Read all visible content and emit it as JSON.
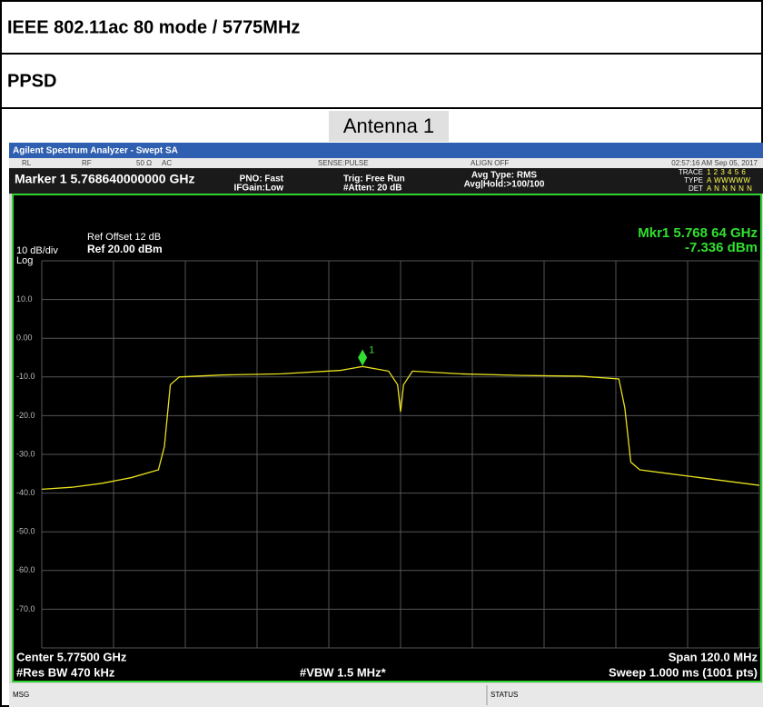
{
  "header": {
    "title": "IEEE 802.11ac 80 mode / 5775MHz",
    "subtitle": "PPSD",
    "caption": "Antenna 1"
  },
  "analyzer": {
    "window_title": "Agilent Spectrum Analyzer - Swept SA",
    "status_items": [
      "RL",
      "RF",
      "50 Ω",
      "AC",
      "SENSE:PULSE",
      "ALIGN OFF",
      "02:57:16 AM Sep 05, 2017"
    ],
    "marker_readout": "Marker 1 5.768640000000 GHz",
    "settings": [
      "PNO: Fast",
      "IFGain:Low",
      "Trig: Free Run",
      "#Atten: 20 dB",
      "Avg Type: RMS",
      "Avg|Hold:>100/100"
    ],
    "trace_label": "TRACE",
    "trace_numbers": "1 2 3 4 5 6",
    "type_label": "TYPE",
    "type_value": "A WWWWW",
    "det_label": "DET",
    "det_value": "A N N N N N",
    "ref_offset": "Ref Offset 12 dB",
    "ref_level": "Ref 20.00 dBm",
    "scale": "10 dB/div",
    "scale_type": "Log",
    "mkr_freq": "Mkr1 5.768 64 GHz",
    "mkr_value": "-7.336 dBm",
    "center": "Center 5.77500 GHz",
    "rbw": "#Res BW 470 kHz",
    "vbw": "#VBW 1.5 MHz*",
    "span": "Span 120.0 MHz",
    "sweep": "Sweep  1.000 ms (1001 pts)",
    "msg": "MSG",
    "status": "STATUS"
  },
  "trace": {
    "color": "#e8e020",
    "xlim": [
      5715,
      5835
    ],
    "ylim": [
      -80,
      20
    ],
    "yticks": [
      {
        "value": 10,
        "label": "10.0"
      },
      {
        "value": 0,
        "label": "0.00"
      },
      {
        "value": -10,
        "label": "-10.0"
      },
      {
        "value": -20,
        "label": "-20.0"
      },
      {
        "value": -30,
        "label": "-30.0"
      },
      {
        "value": -40,
        "label": "-40.0"
      },
      {
        "value": -50,
        "label": "-50.0"
      },
      {
        "value": -60,
        "label": "-60.0"
      },
      {
        "value": -70,
        "label": "-70.0"
      }
    ],
    "x": [
      5715,
      5720,
      5725,
      5730,
      5734.5,
      5735.5,
      5736.5,
      5738,
      5745,
      5755,
      5765,
      5768.64,
      5773,
      5774.5,
      5775,
      5775.5,
      5777,
      5785,
      5795,
      5805,
      5811.5,
      5812.5,
      5813.5,
      5815,
      5820,
      5825,
      5830,
      5835
    ],
    "y": [
      -39,
      -38.5,
      -37.5,
      -36,
      -34,
      -28,
      -12,
      -10,
      -9.5,
      -9.2,
      -8.3,
      -7.3,
      -8.5,
      -12,
      -19,
      -12,
      -8.5,
      -9.2,
      -9.6,
      -9.8,
      -10.5,
      -18,
      -32,
      -34,
      -35,
      -36,
      -37,
      -38
    ],
    "marker": {
      "label": "1",
      "x": 5768.64,
      "y": -7.336
    }
  }
}
